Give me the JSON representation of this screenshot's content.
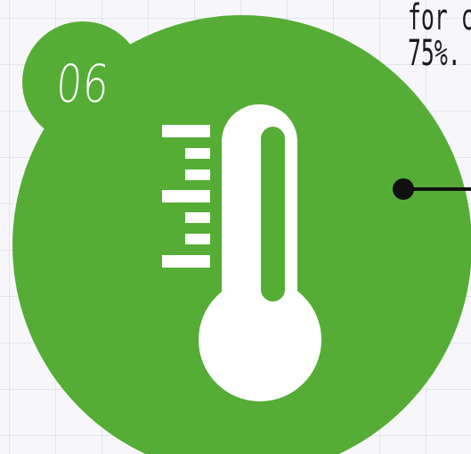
{
  "badge": {
    "number": "06"
  },
  "note": {
    "line1": "for c",
    "line2": "75%."
  },
  "icons": {
    "main": "thermometer-icon",
    "connector": "connector-dot-icon"
  },
  "colors": {
    "circle": "#55ad35",
    "icon": "#ffffff",
    "connector": "#111111",
    "background": "#f7f7fb",
    "grid": "#e3e3ee"
  }
}
